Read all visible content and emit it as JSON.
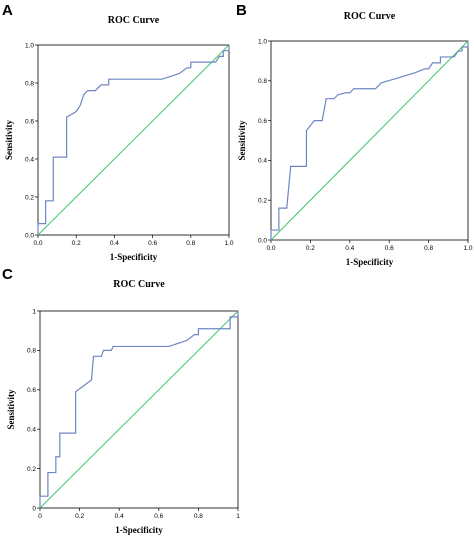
{
  "colors": {
    "roc_line": "#6f86c4",
    "reference_line": "#3cc76a"
  },
  "chart_data": [
    {
      "panel_label": "A",
      "type": "line",
      "title": "ROC Curve",
      "xlabel": "1-Specificity",
      "ylabel": "Sensitivity",
      "xlim": [
        0,
        1
      ],
      "ylim": [
        0,
        1
      ],
      "xticks": [
        "0.0",
        "0.2",
        "0.4",
        "0.6",
        "0.8",
        "1.0"
      ],
      "yticks": [
        "0.0",
        "0.2",
        "0.4",
        "0.6",
        "0.8",
        "1.0"
      ],
      "grid": false,
      "series": [
        {
          "points": [
            [
              0,
              0
            ],
            [
              0,
              0.06
            ],
            [
              0.04,
              0.06
            ],
            [
              0.04,
              0.18
            ],
            [
              0.08,
              0.18
            ],
            [
              0.08,
              0.41
            ],
            [
              0.15,
              0.41
            ],
            [
              0.15,
              0.62
            ],
            [
              0.2,
              0.65
            ],
            [
              0.22,
              0.68
            ],
            [
              0.24,
              0.74
            ],
            [
              0.26,
              0.76
            ],
            [
              0.3,
              0.76
            ],
            [
              0.33,
              0.79
            ],
            [
              0.37,
              0.79
            ],
            [
              0.37,
              0.82
            ],
            [
              0.65,
              0.82
            ],
            [
              0.74,
              0.85
            ],
            [
              0.78,
              0.88
            ],
            [
              0.8,
              0.88
            ],
            [
              0.8,
              0.91
            ],
            [
              0.93,
              0.91
            ],
            [
              0.95,
              0.94
            ],
            [
              0.97,
              0.94
            ],
            [
              0.97,
              0.97
            ],
            [
              1,
              0.97
            ],
            [
              1,
              1
            ]
          ]
        },
        {
          "points": [
            [
              0,
              0
            ],
            [
              1,
              1
            ]
          ]
        }
      ]
    },
    {
      "panel_label": "B",
      "type": "line",
      "title": "ROC Curve",
      "xlabel": "1-Specificity",
      "ylabel": "Sensitivity",
      "xlim": [
        0,
        1
      ],
      "ylim": [
        0,
        1
      ],
      "xticks": [
        "0.0",
        "0.2",
        "0.4",
        "0.6",
        "0.8",
        "1.0"
      ],
      "yticks": [
        "0.0",
        "0.2",
        "0.4",
        "0.6",
        "0.8",
        "1.0"
      ],
      "grid": false,
      "series": [
        {
          "points": [
            [
              0,
              0
            ],
            [
              0,
              0.05
            ],
            [
              0.04,
              0.05
            ],
            [
              0.04,
              0.16
            ],
            [
              0.08,
              0.16
            ],
            [
              0.1,
              0.37
            ],
            [
              0.18,
              0.37
            ],
            [
              0.18,
              0.55
            ],
            [
              0.22,
              0.6
            ],
            [
              0.26,
              0.6
            ],
            [
              0.28,
              0.71
            ],
            [
              0.32,
              0.71
            ],
            [
              0.34,
              0.73
            ],
            [
              0.38,
              0.74
            ],
            [
              0.4,
              0.74
            ],
            [
              0.42,
              0.76
            ],
            [
              0.53,
              0.76
            ],
            [
              0.56,
              0.79
            ],
            [
              0.63,
              0.81
            ],
            [
              0.73,
              0.84
            ],
            [
              0.78,
              0.86
            ],
            [
              0.8,
              0.86
            ],
            [
              0.82,
              0.89
            ],
            [
              0.86,
              0.89
            ],
            [
              0.86,
              0.92
            ],
            [
              0.93,
              0.92
            ],
            [
              0.95,
              0.95
            ],
            [
              0.97,
              0.95
            ],
            [
              0.97,
              0.97
            ],
            [
              1,
              0.97
            ],
            [
              1,
              1
            ]
          ]
        },
        {
          "points": [
            [
              0,
              0
            ],
            [
              1,
              1
            ]
          ]
        }
      ]
    },
    {
      "panel_label": "C",
      "type": "line",
      "title": "ROC Curve",
      "xlabel": "1-Specificity",
      "ylabel": "Sensitivity",
      "xlim": [
        0,
        1
      ],
      "ylim": [
        0,
        1
      ],
      "xticks": [
        "0",
        "0.2",
        "0.4",
        "0.6",
        "0.8",
        "1"
      ],
      "yticks": [
        "0",
        "0.2",
        "0.4",
        "0.6",
        "0.8",
        "1"
      ],
      "grid": false,
      "series": [
        {
          "points": [
            [
              0,
              0
            ],
            [
              0,
              0.06
            ],
            [
              0.04,
              0.06
            ],
            [
              0.04,
              0.18
            ],
            [
              0.08,
              0.18
            ],
            [
              0.08,
              0.26
            ],
            [
              0.1,
              0.26
            ],
            [
              0.1,
              0.38
            ],
            [
              0.18,
              0.38
            ],
            [
              0.18,
              0.59
            ],
            [
              0.22,
              0.62
            ],
            [
              0.26,
              0.65
            ],
            [
              0.27,
              0.77
            ],
            [
              0.31,
              0.77
            ],
            [
              0.32,
              0.8
            ],
            [
              0.36,
              0.8
            ],
            [
              0.37,
              0.82
            ],
            [
              0.65,
              0.82
            ],
            [
              0.74,
              0.85
            ],
            [
              0.78,
              0.88
            ],
            [
              0.8,
              0.88
            ],
            [
              0.8,
              0.91
            ],
            [
              0.96,
              0.91
            ],
            [
              0.96,
              0.97
            ],
            [
              1,
              0.97
            ],
            [
              1,
              1
            ]
          ]
        },
        {
          "points": [
            [
              0,
              0
            ],
            [
              1,
              1
            ]
          ]
        }
      ]
    }
  ]
}
